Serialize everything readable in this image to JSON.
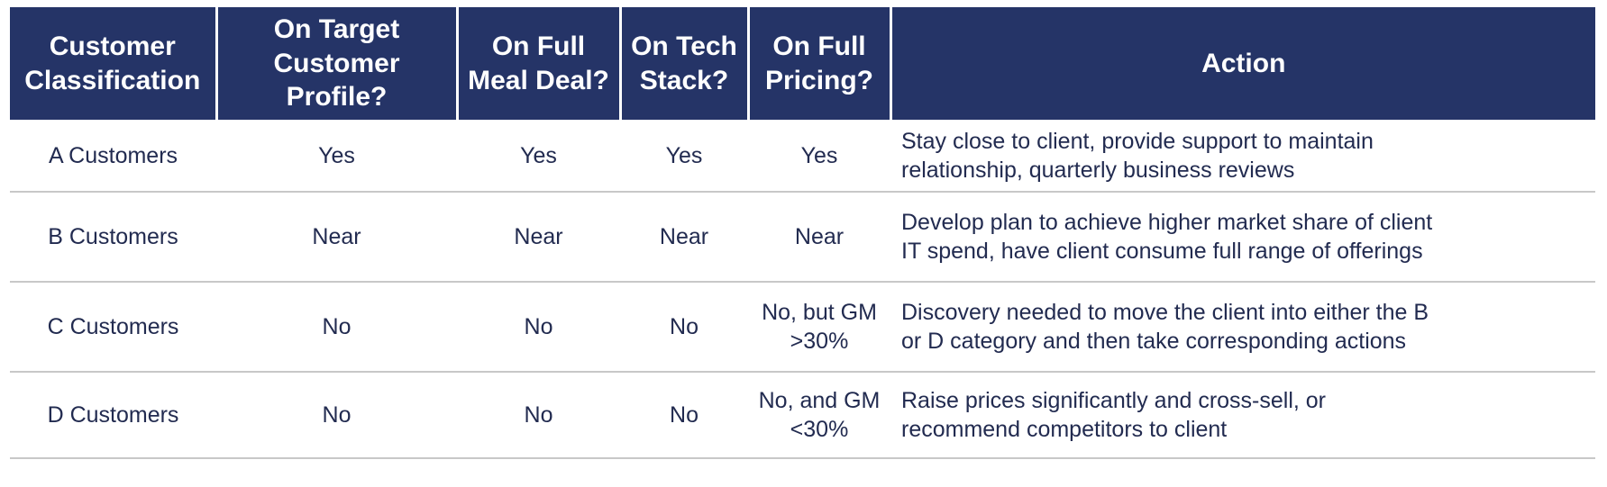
{
  "table": {
    "colors": {
      "header_bg": "#253467",
      "header_text": "#FFFFFF",
      "body_text": "#222B50",
      "row_divider": "#C8C8C8"
    },
    "columns": [
      {
        "label": "Customer\nClassification"
      },
      {
        "label": "On Target\nCustomer Profile?"
      },
      {
        "label": "On Full\nMeal Deal?"
      },
      {
        "label": "On Tech\nStack?"
      },
      {
        "label": "On Full\nPricing?"
      },
      {
        "label": "Action"
      }
    ],
    "rows": [
      {
        "classification": "A Customers",
        "target_profile": "Yes",
        "meal_deal": "Yes",
        "tech_stack": "Yes",
        "pricing": "Yes",
        "action": "Stay close to client, provide support to maintain\nrelationship, quarterly business reviews"
      },
      {
        "classification": "B Customers",
        "target_profile": "Near",
        "meal_deal": "Near",
        "tech_stack": "Near",
        "pricing": "Near",
        "action": "Develop plan to achieve higher market share of client\nIT spend, have client consume full range of offerings"
      },
      {
        "classification": "C Customers",
        "target_profile": "No",
        "meal_deal": "No",
        "tech_stack": "No",
        "pricing": "No, but GM\n>30%",
        "action": "Discovery needed to move the client into either the B\nor D category and then take corresponding actions"
      },
      {
        "classification": "D Customers",
        "target_profile": "No",
        "meal_deal": "No",
        "tech_stack": "No",
        "pricing": "No, and GM\n<30%",
        "action": "Raise prices significantly and cross-sell, or\nrecommend competitors to client"
      }
    ]
  }
}
